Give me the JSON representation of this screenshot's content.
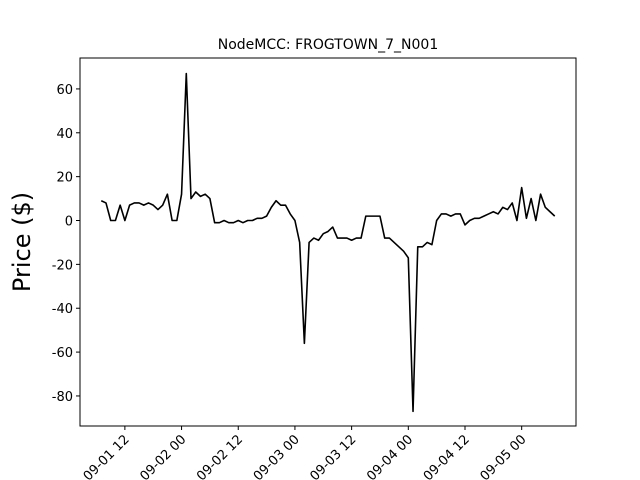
{
  "chart_data": {
    "type": "line",
    "title": "NodeMCC: FROGTOWN_7_N001",
    "y_label": "Price ($)",
    "x": [
      "09-01 07",
      "09-01 08",
      "09-01 09",
      "09-01 10",
      "09-01 11",
      "09-01 12",
      "09-01 13",
      "09-01 14",
      "09-01 15",
      "09-01 16",
      "09-01 17",
      "09-01 18",
      "09-01 19",
      "09-01 20",
      "09-01 21",
      "09-01 22",
      "09-01 23",
      "09-02 00",
      "09-02 01",
      "09-02 02",
      "09-02 03",
      "09-02 04",
      "09-02 05",
      "09-02 06",
      "09-02 07",
      "09-02 08",
      "09-02 09",
      "09-02 10",
      "09-02 11",
      "09-02 12",
      "09-02 13",
      "09-02 14",
      "09-02 15",
      "09-02 16",
      "09-02 17",
      "09-02 18",
      "09-02 19",
      "09-02 20",
      "09-02 21",
      "09-02 22",
      "09-02 23",
      "09-03 00",
      "09-03 01",
      "09-03 02",
      "09-03 03",
      "09-03 04",
      "09-03 05",
      "09-03 06",
      "09-03 07",
      "09-03 08",
      "09-03 09",
      "09-03 10",
      "09-03 11",
      "09-03 12",
      "09-03 13",
      "09-03 14",
      "09-03 15",
      "09-03 16",
      "09-03 17",
      "09-03 18",
      "09-03 19",
      "09-03 20",
      "09-03 21",
      "09-03 22",
      "09-03 23",
      "09-04 00",
      "09-04 01",
      "09-04 02",
      "09-04 03",
      "09-04 04",
      "09-04 05",
      "09-04 06",
      "09-04 07",
      "09-04 08",
      "09-04 09",
      "09-04 10",
      "09-04 11",
      "09-04 12",
      "09-04 13",
      "09-04 14",
      "09-04 15",
      "09-04 16",
      "09-04 17",
      "09-04 18",
      "09-04 19",
      "09-04 20",
      "09-04 21",
      "09-04 22",
      "09-04 23",
      "09-05 00",
      "09-05 01",
      "09-05 02",
      "09-05 03",
      "09-05 04",
      "09-05 05",
      "09-05 06",
      "09-05 07"
    ],
    "series": [
      {
        "color": "#000000",
        "values": [
          9,
          8,
          0,
          0,
          7,
          0,
          7,
          8,
          8,
          7,
          8,
          7,
          5,
          7,
          12,
          0,
          0,
          12,
          67,
          10,
          13,
          11,
          12,
          10,
          -1,
          -1,
          0,
          -1,
          -1,
          0,
          -1,
          0,
          0,
          1,
          1,
          2,
          6,
          9,
          7,
          7,
          3,
          0,
          -10,
          -56,
          -10,
          -8,
          -9,
          -6,
          -5,
          -3,
          -8,
          -8,
          -8,
          -9,
          -8,
          -8,
          2,
          2,
          2,
          2,
          -8,
          -8,
          -10,
          -12,
          -14,
          -17,
          -87,
          -12,
          -12,
          -10,
          -11,
          0,
          3,
          3,
          2,
          3,
          3,
          -2,
          0,
          1,
          1,
          2,
          3,
          4,
          3,
          6,
          5,
          8,
          0,
          15,
          1,
          10,
          0,
          12,
          6,
          4,
          2
        ]
      }
    ],
    "xlim": [
      "09-01 02:30",
      "09-05 11:30"
    ],
    "xticks": [
      "09-01 12",
      "09-02 00",
      "09-02 12",
      "09-03 00",
      "09-03 12",
      "09-04 00",
      "09-04 12",
      "09-05 00"
    ],
    "ylim": [
      -93.7,
      74.1
    ],
    "yticks": [
      -80,
      -60,
      -40,
      -20,
      0,
      20,
      40,
      60
    ]
  }
}
